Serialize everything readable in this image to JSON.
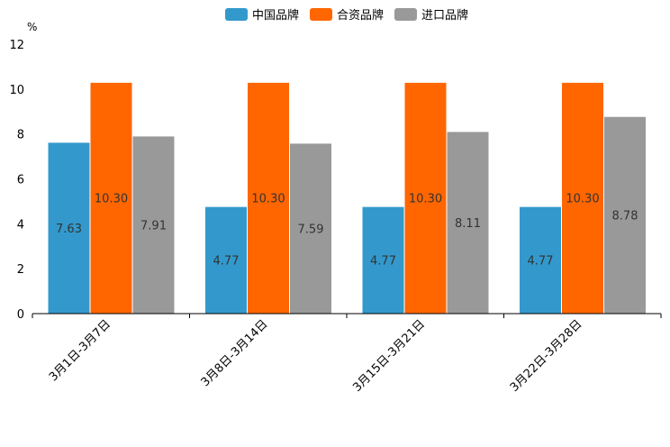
{
  "chart_data": {
    "type": "bar",
    "title": "",
    "unit": "%",
    "xlabel": "",
    "ylabel": "%",
    "ylim": [
      0,
      12
    ],
    "yticks": [
      0,
      2,
      4,
      6,
      8,
      10,
      12
    ],
    "grid": false,
    "legend_position": "top-center",
    "categories": [
      "3月1日-3月7日",
      "3月8日-3月14日",
      "3月15日-3月21日",
      "3月22日-3月28日"
    ],
    "series": [
      {
        "name": "中国品牌",
        "color": "#3399CC",
        "values": [
          7.63,
          4.77,
          4.77,
          4.77
        ]
      },
      {
        "name": "合资品牌",
        "color": "#FF6600",
        "values": [
          10.3,
          10.3,
          10.3,
          10.3
        ]
      },
      {
        "name": "进口品牌",
        "color": "#999999",
        "values": [
          7.91,
          7.59,
          8.11,
          8.78
        ]
      }
    ]
  }
}
